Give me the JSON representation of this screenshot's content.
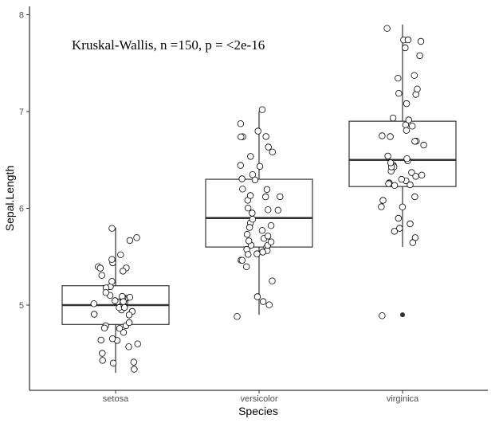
{
  "chart_data": {
    "type": "boxplot",
    "title": "",
    "xlabel": "Species",
    "ylabel": "Sepal.Length",
    "annotation": "Kruskal-Wallis, n =150, p = <2e-16",
    "categories": [
      "setosa",
      "versicolor",
      "virginica"
    ],
    "yticks": [
      5,
      6,
      7,
      8
    ],
    "ylim": [
      4.2,
      8.05
    ],
    "grid": false,
    "boxes": [
      {
        "category": "setosa",
        "whisker_low": 4.3,
        "q1": 4.8,
        "median": 5.0,
        "q3": 5.2,
        "whisker_high": 5.8,
        "outliers": []
      },
      {
        "category": "versicolor",
        "whisker_low": 4.9,
        "q1": 5.6,
        "median": 5.9,
        "q3": 6.3,
        "whisker_high": 7.0,
        "outliers": []
      },
      {
        "category": "virginica",
        "whisker_low": 5.6,
        "q1": 6.225,
        "median": 6.5,
        "q3": 6.9,
        "whisker_high": 7.9,
        "outliers": [
          4.9
        ]
      }
    ],
    "points": {
      "setosa": [
        5.1,
        4.9,
        4.7,
        4.6,
        5.0,
        5.4,
        4.6,
        5.0,
        4.4,
        4.9,
        5.4,
        4.8,
        4.8,
        4.3,
        5.8,
        5.7,
        5.4,
        5.1,
        5.7,
        5.1,
        5.4,
        5.1,
        4.6,
        5.1,
        4.8,
        5.0,
        5.0,
        5.2,
        5.2,
        4.7,
        4.8,
        5.4,
        5.2,
        5.5,
        4.9,
        5.0,
        5.5,
        4.9,
        4.4,
        5.1,
        5.0,
        4.5,
        4.4,
        5.0,
        5.1,
        4.8,
        5.1,
        4.6,
        5.3,
        5.0
      ],
      "versicolor": [
        7.0,
        6.4,
        6.9,
        5.5,
        6.5,
        5.7,
        6.3,
        4.9,
        6.6,
        5.2,
        5.0,
        5.9,
        6.0,
        6.1,
        5.6,
        6.7,
        5.6,
        5.8,
        6.2,
        5.6,
        5.9,
        6.1,
        6.3,
        6.1,
        6.4,
        6.6,
        6.8,
        6.7,
        6.0,
        5.7,
        5.5,
        5.5,
        5.8,
        6.0,
        5.4,
        6.0,
        6.7,
        6.3,
        5.6,
        5.5,
        5.5,
        6.1,
        5.8,
        5.0,
        5.6,
        5.7,
        5.7,
        6.2,
        5.1,
        5.7
      ],
      "virginica": [
        6.3,
        5.8,
        7.1,
        6.3,
        6.5,
        7.6,
        4.9,
        7.3,
        6.7,
        7.2,
        6.5,
        6.4,
        6.8,
        5.7,
        5.8,
        6.4,
        6.5,
        7.7,
        7.7,
        6.0,
        6.9,
        5.6,
        7.7,
        6.3,
        6.7,
        7.2,
        6.2,
        6.1,
        6.4,
        7.2,
        7.4,
        7.9,
        6.4,
        6.3,
        6.1,
        7.7,
        6.3,
        6.4,
        6.0,
        6.9,
        6.7,
        6.9,
        5.8,
        6.8,
        6.7,
        6.7,
        6.3,
        6.5,
        6.2,
        5.9
      ]
    },
    "colors": {
      "point_fill": "#ffffff",
      "point_stroke": "#000000",
      "box_stroke": "#333333",
      "outlier": "#333333"
    }
  }
}
